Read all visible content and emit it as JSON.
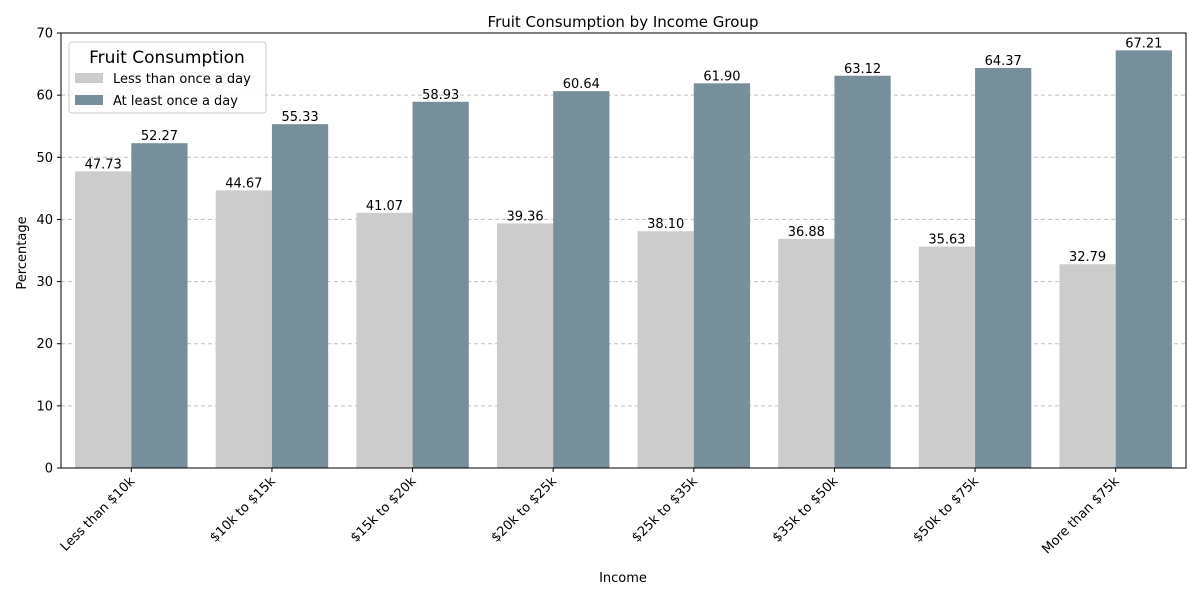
{
  "chart_data": {
    "type": "bar",
    "title": "Fruit Consumption by Income Group",
    "xlabel": "Income",
    "ylabel": "Percentage",
    "categories": [
      "Less than $10k",
      "$10k to $15k",
      "$15k to $20k",
      "$20k to $25k",
      "$25k to $35k",
      "$35k to $50k",
      "$50k to $75k",
      "More than $75k"
    ],
    "series": [
      {
        "name": "Less than once a day",
        "color": "#cccccc",
        "values": [
          47.73,
          44.67,
          41.07,
          39.36,
          38.1,
          36.88,
          35.63,
          32.79
        ],
        "labels": [
          "47.73",
          "44.67",
          "41.07",
          "39.36",
          "38.10",
          "36.88",
          "35.63",
          "32.79"
        ]
      },
      {
        "name": "At least once a day",
        "color": "#778f9a",
        "values": [
          52.27,
          55.33,
          58.93,
          60.64,
          61.9,
          63.12,
          64.37,
          67.21
        ],
        "labels": [
          "52.27",
          "55.33",
          "58.93",
          "60.64",
          "61.90",
          "63.12",
          "64.37",
          "67.21"
        ]
      }
    ],
    "ylim": [
      0,
      70
    ],
    "yticks": [
      0,
      10,
      20,
      30,
      40,
      50,
      60,
      70
    ],
    "grid": "y-dashed",
    "legend": {
      "title": "Fruit Consumption",
      "placement": "top-left"
    }
  }
}
